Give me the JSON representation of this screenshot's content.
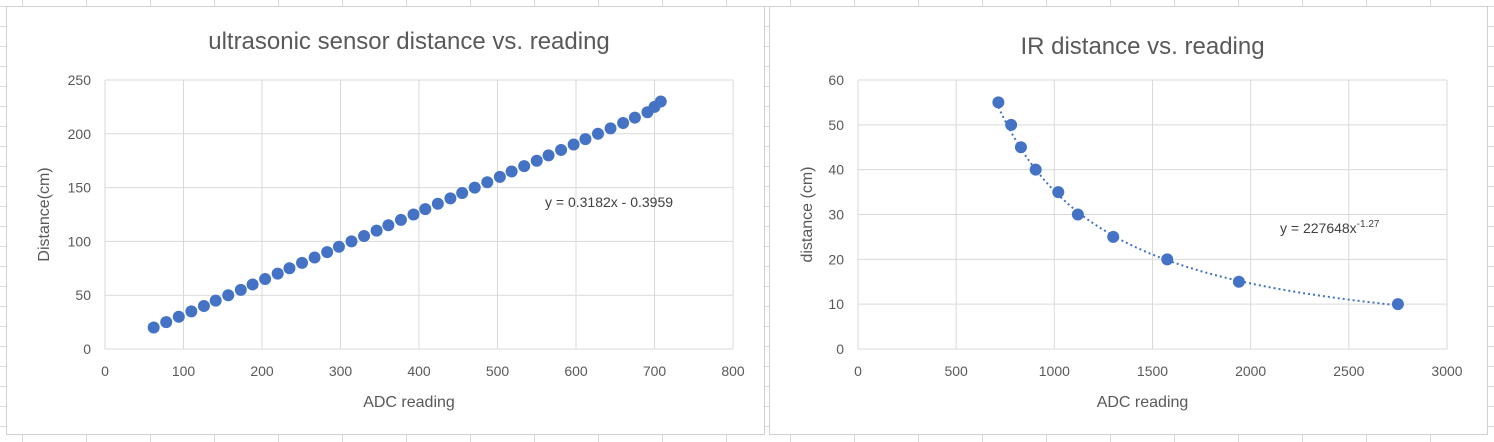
{
  "chart_data": [
    {
      "type": "scatter",
      "title": "ultrasonic sensor distance vs. reading",
      "xlabel": "ADC reading",
      "ylabel": "Distance(cm)",
      "xlim": [
        0,
        800
      ],
      "ylim": [
        0,
        250
      ],
      "xticks": [
        0,
        100,
        200,
        300,
        400,
        500,
        600,
        700,
        800
      ],
      "yticks": [
        0,
        50,
        100,
        150,
        200,
        250
      ],
      "grid": true,
      "legend": "none",
      "color": "#4472c4",
      "trendline": {
        "type": "linear",
        "equation_prefix": "y = 0.3182x - 0.3959",
        "equation_sup": "",
        "slope": 0.3182,
        "intercept": -0.3959,
        "visible_line": false
      },
      "series": [
        {
          "x": [
            62,
            78,
            94,
            110,
            126,
            141,
            157,
            173,
            188,
            204,
            220,
            235,
            251,
            267,
            283,
            298,
            314,
            330,
            346,
            361,
            377,
            393,
            408,
            424,
            440,
            455,
            471,
            487,
            503,
            518,
            534,
            550,
            565,
            581,
            597,
            612,
            628,
            644,
            660,
            675,
            691,
            700,
            708
          ],
          "y": [
            20,
            25,
            30,
            35,
            40,
            45,
            50,
            55,
            60,
            65,
            70,
            75,
            80,
            85,
            90,
            95,
            100,
            105,
            110,
            115,
            120,
            125,
            130,
            135,
            140,
            145,
            150,
            155,
            160,
            165,
            170,
            175,
            180,
            185,
            190,
            195,
            200,
            205,
            210,
            215,
            220,
            225,
            230
          ]
        }
      ]
    },
    {
      "type": "scatter",
      "title": "IR distance vs. reading",
      "xlabel": "ADC reading",
      "ylabel": "distance (cm)",
      "xlim": [
        0,
        3000
      ],
      "ylim": [
        0,
        60
      ],
      "xticks": [
        0,
        500,
        1000,
        1500,
        2000,
        2500,
        3000
      ],
      "yticks": [
        0,
        10,
        20,
        30,
        40,
        50,
        60
      ],
      "grid": true,
      "legend": "none",
      "color": "#4472c4",
      "trendline": {
        "type": "power",
        "equation_prefix": "y = 227648x",
        "equation_sup": "-1.27",
        "coefficient": 227648,
        "exponent": -1.27,
        "visible_line": true
      },
      "series": [
        {
          "x": [
            715,
            780,
            830,
            905,
            1020,
            1120,
            1300,
            1575,
            1940,
            2750
          ],
          "y": [
            55,
            50,
            45,
            40,
            35,
            30,
            25,
            20,
            15,
            10
          ]
        }
      ]
    }
  ]
}
